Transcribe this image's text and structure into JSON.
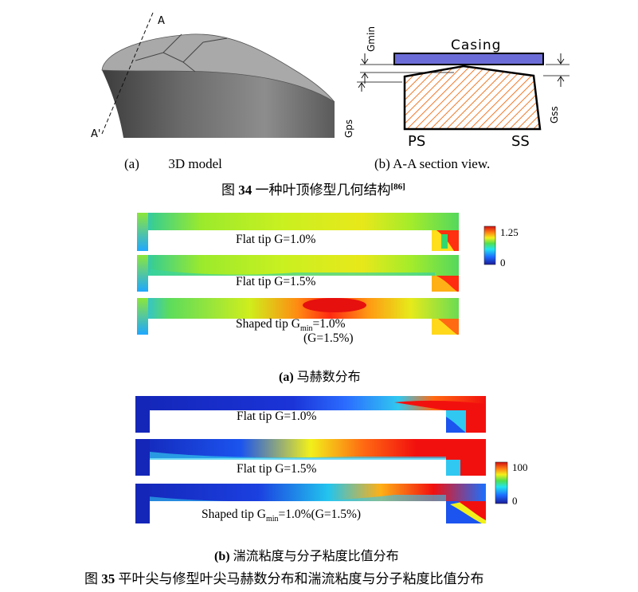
{
  "fig34": {
    "model3d": {
      "section_marker_top": "A",
      "section_marker_bottom": "A'"
    },
    "section": {
      "casing_label": "Casing",
      "gmin_label": "Gmin",
      "gps_label": "Gps",
      "gss_label": "Gss",
      "ps_label": "PS",
      "ss_label": "SS"
    },
    "sub_a": {
      "letter": "(a)",
      "text": "3D model"
    },
    "sub_b": {
      "text": "(b) A-A section view."
    },
    "caption": {
      "prefix": "图",
      "number": "34",
      "text": "一种叶顶修型几何结构",
      "ref": "[86]"
    }
  },
  "fig35": {
    "mach": {
      "panels": [
        {
          "label": "Flat tip G=1.0%"
        },
        {
          "label": "Flat tip G=1.5%"
        },
        {
          "label_pre": "Shaped tip G",
          "label_sub": "min",
          "label_post": "=1.0%",
          "label_line2": "(G=1.5%)"
        }
      ],
      "colorbar": {
        "max": "1.25",
        "min": "0"
      },
      "caption": {
        "letter": "(a)",
        "text": "马赫数分布"
      }
    },
    "visc": {
      "panels": [
        {
          "label": "Flat tip G=1.0%"
        },
        {
          "label": "Flat tip G=1.5%"
        },
        {
          "label_pre": "Shaped tip G",
          "label_sub": "min",
          "label_post": "=1.0%(G=1.5%)"
        }
      ],
      "colorbar": {
        "max": "100",
        "min": "0"
      },
      "caption": {
        "letter": "(b)",
        "text": "湍流粘度与分子粘度比值分布"
      }
    },
    "caption": {
      "prefix": "图",
      "number": "35",
      "text": "平叶尖与修型叶尖马赫数分布和湍流粘度与分子粘度比值分布"
    }
  }
}
